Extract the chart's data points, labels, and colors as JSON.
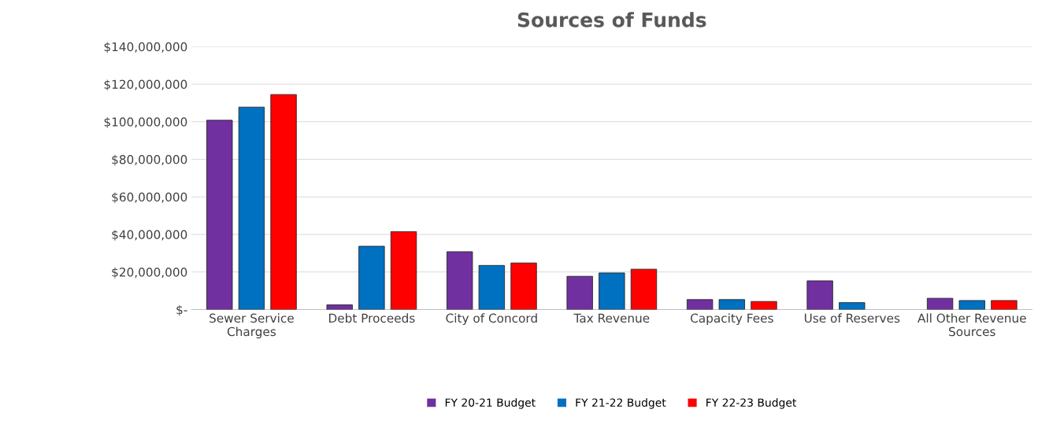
{
  "chart_data": {
    "type": "bar",
    "title": "Sources of Funds",
    "categories": [
      "Sewer Service\nCharges",
      "Debt Proceeds",
      "City of Concord",
      "Tax Revenue",
      "Capacity Fees",
      "Use of Reserves",
      "All Other Revenue\nSources"
    ],
    "series": [
      {
        "name": "FY 20-21 Budget",
        "color": "#7030a0",
        "values": [
          100800000,
          2500000,
          30800000,
          17700000,
          5300000,
          15300000,
          6000000
        ]
      },
      {
        "name": "FY 21-22 Budget",
        "color": "#0070c0",
        "values": [
          107800000,
          33700000,
          23500000,
          19500000,
          5300000,
          3700000,
          4800000
        ]
      },
      {
        "name": "FY 22-23 Budget",
        "color": "#ff0000",
        "values": [
          114500000,
          41500000,
          24800000,
          21500000,
          4300000,
          null,
          4800000
        ]
      }
    ],
    "ylim": [
      0,
      140000000
    ],
    "yticks": [
      {
        "value": 0,
        "label": "$-"
      },
      {
        "value": 20000000,
        "label": "$20,000,000"
      },
      {
        "value": 40000000,
        "label": "$40,000,000"
      },
      {
        "value": 60000000,
        "label": "$60,000,000"
      },
      {
        "value": 80000000,
        "label": "$80,000,000"
      },
      {
        "value": 100000000,
        "label": "$100,000,000"
      },
      {
        "value": 120000000,
        "label": "$120,000,000"
      },
      {
        "value": 140000000,
        "label": "$140,000,000"
      }
    ],
    "grid": "y",
    "legend": "bottom"
  }
}
